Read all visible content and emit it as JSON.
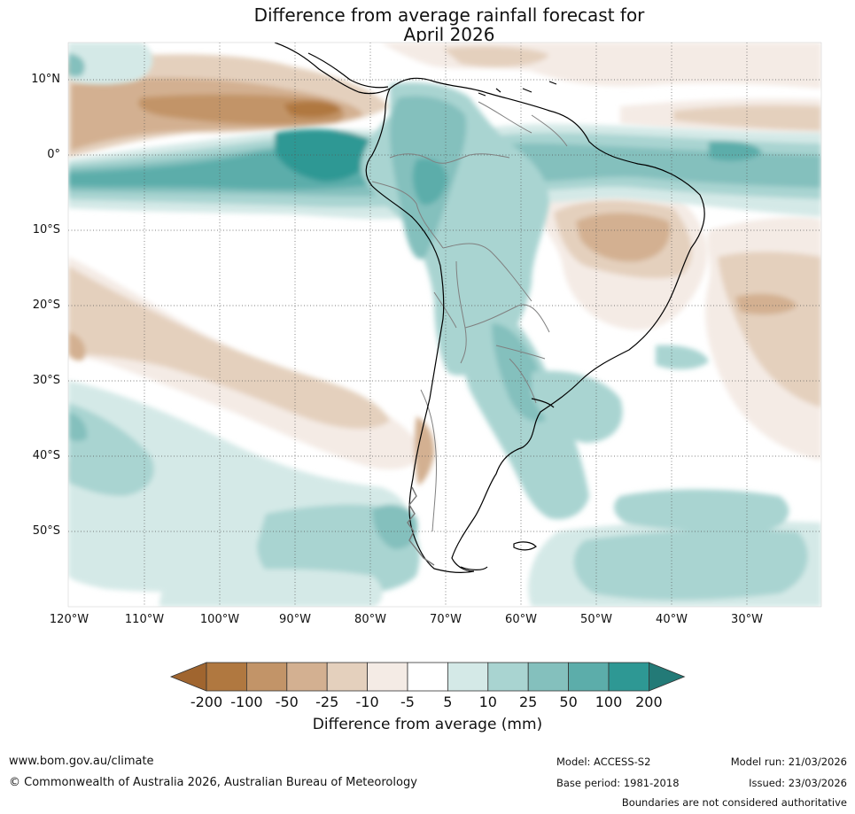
{
  "title": {
    "line1": "Difference from average rainfall forecast for",
    "line2": "April 2026"
  },
  "lat_labels": [
    "10°N",
    "0°",
    "10°S",
    "20°S",
    "30°S",
    "40°S",
    "50°S"
  ],
  "lon_labels": [
    "120°W",
    "110°W",
    "100°W",
    "90°W",
    "80°W",
    "70°W",
    "60°W",
    "50°W",
    "40°W",
    "30°W"
  ],
  "colorbar": {
    "ticks": [
      "-200",
      "-100",
      "-50",
      "-25",
      "-10",
      "-5",
      "5",
      "10",
      "25",
      "50",
      "100",
      "200"
    ],
    "colors": [
      "#a0652f",
      "#b07840",
      "#c29468",
      "#d3b091",
      "#e4d0bd",
      "#f4ebe5",
      "#ffffff",
      "#d4e9e7",
      "#a9d4d1",
      "#84c0bd",
      "#5cadaa",
      "#2e9894",
      "#237a77"
    ],
    "title": "Difference from average (mm)"
  },
  "footer": {
    "website": "www.bom.gov.au/climate",
    "copyright": "© Commonwealth of Australia 2026, Australian Bureau of Meteorology",
    "model": "Model: ACCESS-S2",
    "base_period": "Base period: 1981-2018",
    "model_run": "Model run: 21/03/2026",
    "issued": "Issued: 23/03/2026",
    "disclaimer": "Boundaries are not considered authoritative"
  }
}
